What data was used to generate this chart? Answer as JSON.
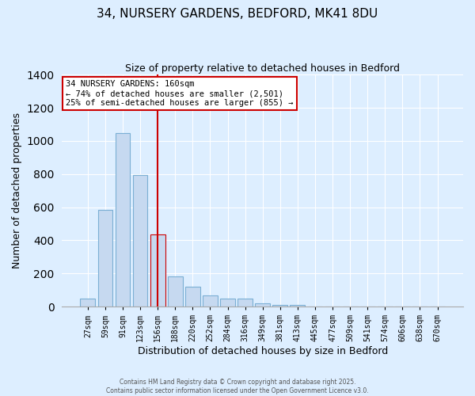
{
  "title": "34, NURSERY GARDENS, BEDFORD, MK41 8DU",
  "subtitle": "Size of property relative to detached houses in Bedford",
  "xlabel": "Distribution of detached houses by size in Bedford",
  "ylabel": "Number of detached properties",
  "categories": [
    "27sqm",
    "59sqm",
    "91sqm",
    "123sqm",
    "156sqm",
    "188sqm",
    "220sqm",
    "252sqm",
    "284sqm",
    "316sqm",
    "349sqm",
    "381sqm",
    "413sqm",
    "445sqm",
    "477sqm",
    "509sqm",
    "541sqm",
    "574sqm",
    "606sqm",
    "638sqm",
    "670sqm"
  ],
  "values": [
    50,
    585,
    1048,
    795,
    435,
    180,
    120,
    68,
    50,
    50,
    22,
    12,
    8,
    3,
    1,
    0,
    0,
    0,
    0,
    0,
    3
  ],
  "bar_color": "#c6d9f0",
  "bar_edge_color": "#7bafd4",
  "highlight_bar_index": 4,
  "highlight_bar_color": "#c6d9f0",
  "highlight_bar_edge_color": "#cc0000",
  "vline_x": 4.5,
  "vline_color": "#cc0000",
  "annotation_title": "34 NURSERY GARDENS: 160sqm",
  "annotation_line1": "← 74% of detached houses are smaller (2,501)",
  "annotation_line2": "25% of semi-detached houses are larger (855) →",
  "ylim": [
    0,
    1400
  ],
  "yticks": [
    0,
    200,
    400,
    600,
    800,
    1000,
    1200,
    1400
  ],
  "bg_color": "#ddeeff",
  "grid_color": "#c0d8ee",
  "footer_line1": "Contains HM Land Registry data © Crown copyright and database right 2025.",
  "footer_line2": "Contains public sector information licensed under the Open Government Licence v3.0."
}
